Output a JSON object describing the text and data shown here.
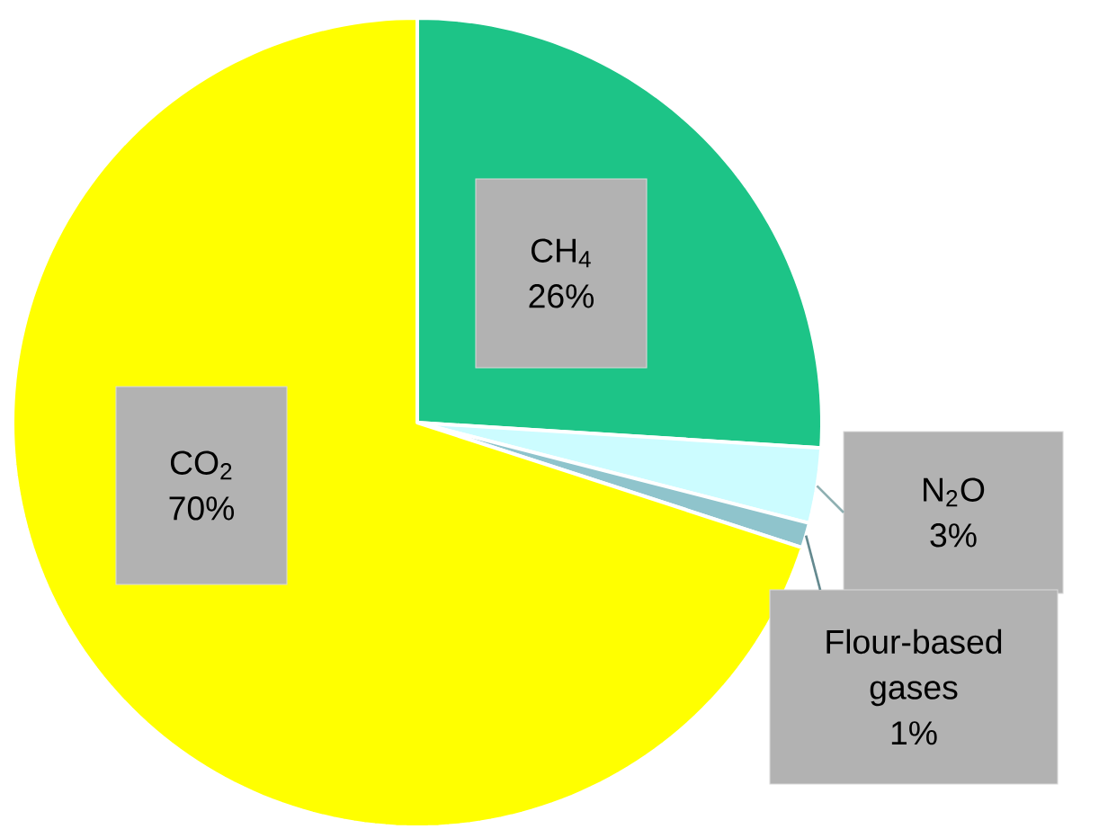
{
  "chart_data": {
    "type": "pie",
    "categories": [
      "CH$_{4}$",
      "N$_{2}$O",
      "Flour-based gases",
      "CO$_{2}$"
    ],
    "values": [
      26,
      3,
      1,
      70
    ],
    "value_labels": [
      "26%",
      "3%",
      "1%",
      "70%"
    ],
    "colors": [
      "#1dc487",
      "#ccfcff",
      "#8fc4cc",
      "#ffff00"
    ]
  }
}
